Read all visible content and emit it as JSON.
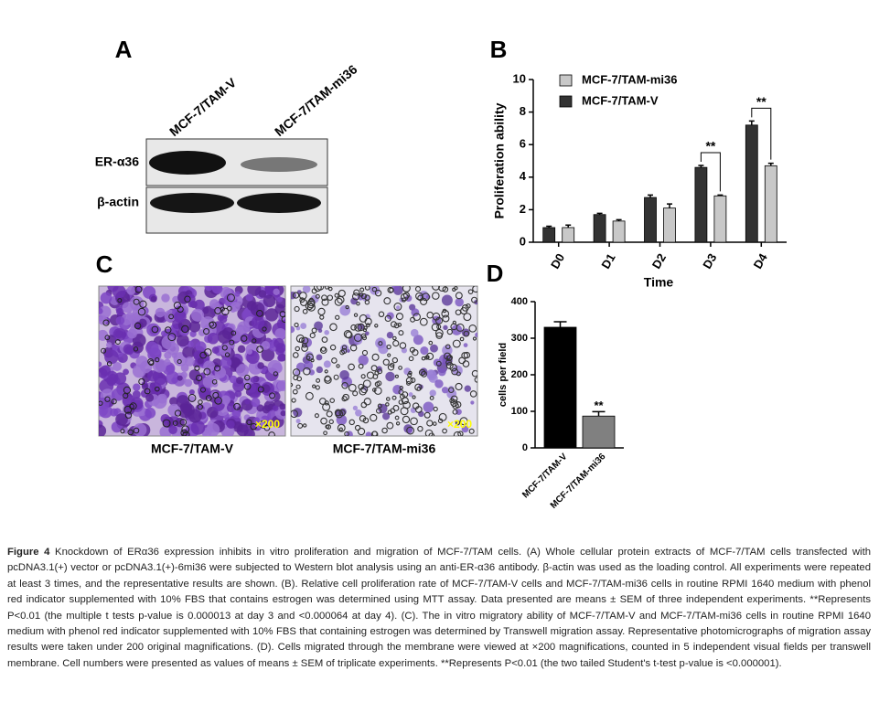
{
  "panels": {
    "a": "A",
    "b": "B",
    "c": "C",
    "d": "D"
  },
  "blot": {
    "lanes": [
      "MCF-7/TAM-V",
      "MCF-7/TAM-mi36"
    ],
    "rows": [
      "ER-α36",
      "β-actin"
    ]
  },
  "micrographs": {
    "magnification": "×200",
    "labels": [
      "MCF-7/TAM-V",
      "MCF-7/TAM-mi36"
    ]
  },
  "chart_data": [
    {
      "type": "bar",
      "ylabel": "Proliferation ability",
      "xlabel": "Time",
      "categories": [
        "D0",
        "D1",
        "D2",
        "D3",
        "D4"
      ],
      "series": [
        {
          "name": "MCF-7/TAM-V",
          "color": "#333333",
          "values": [
            0.9,
            1.7,
            2.75,
            4.6,
            7.2
          ],
          "errors": [
            0.08,
            0.08,
            0.15,
            0.12,
            0.25
          ]
        },
        {
          "name": "MCF-7/TAM-mi36",
          "color": "#c8c8c8",
          "values": [
            0.9,
            1.3,
            2.1,
            2.85,
            4.7
          ],
          "errors": [
            0.15,
            0.08,
            0.25,
            0.05,
            0.15
          ]
        }
      ],
      "ylim": [
        0,
        10
      ],
      "yticks": [
        0,
        2,
        4,
        6,
        8,
        10
      ],
      "annotations": [
        "**",
        "**"
      ]
    },
    {
      "type": "bar",
      "ylabel": "cells per field",
      "categories": [
        "MCF-7/TAM-V",
        "MCF-7/TAM-mi36"
      ],
      "values": [
        330,
        87
      ],
      "errors": [
        15,
        12
      ],
      "colors": [
        "#000000",
        "#808080"
      ],
      "ylim": [
        0,
        400
      ],
      "yticks": [
        0,
        100,
        200,
        300,
        400
      ],
      "annotations": [
        "**"
      ]
    }
  ],
  "caption": {
    "label": "Figure 4",
    "text": "Knockdown of ERα36 expression inhibits in vitro proliferation and migration of MCF-7/TAM cells. (A) Whole cellular protein extracts of MCF-7/TAM cells transfected with pcDNA3.1(+) vector or pcDNA3.1(+)-6mi36 were subjected to Western blot analysis using an anti-ER-α36 antibody. β-actin was used as the loading control. All experiments were repeated at least 3 times, and the representative results are shown. (B). Relative cell proliferation rate of MCF-7/TAM-V cells and MCF-7/TAM-mi36 cells in routine RPMI 1640 medium with phenol red indicator supplemented with 10% FBS that contains estrogen was determined using MTT assay. Data presented are means ± SEM of three independent experiments. **Represents P<0.01 (the multiple t tests p-value is 0.000013 at day 3 and <0.000064 at day 4). (C). The in vitro migratory ability of MCF-7/TAM-V and MCF-7/TAM-mi36 cells in routine RPMI 1640 medium with phenol red indicator supplemented with 10% FBS that containing estrogen was determined by Transwell migration assay. Representative photomicrographs of migration assay results were taken under 200 original magnifications. (D). Cells migrated through the membrane were viewed at ×200 magnifications, counted in 5 independent visual fields per transwell membrane. Cell numbers were presented as values of means ± SEM of triplicate experiments. **Represents P<0.01 (the two tailed Student's t-test p-value is <0.000001)."
  }
}
